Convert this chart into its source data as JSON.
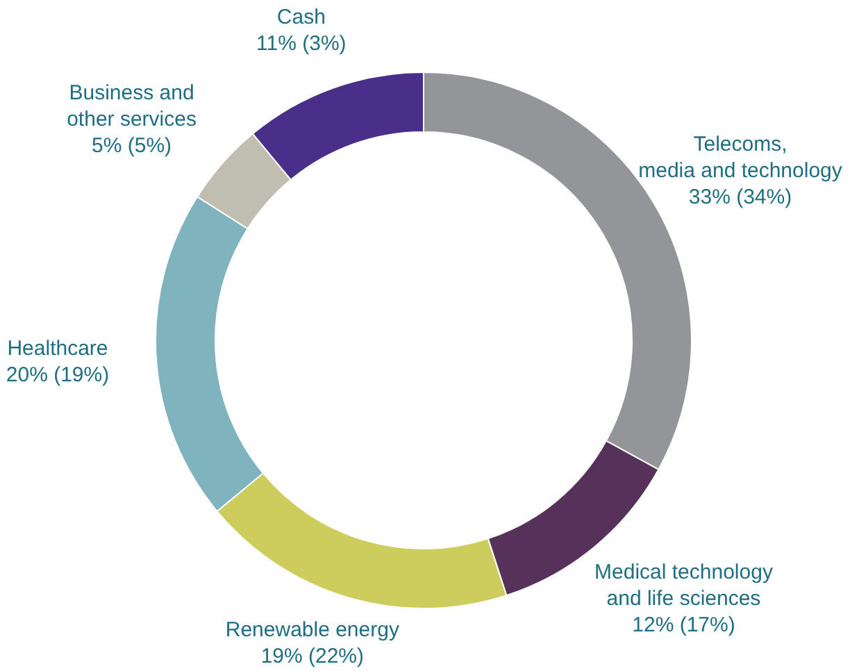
{
  "chart_data": {
    "type": "donut",
    "categories": [
      "Telecoms,\nmedia and technology",
      "Medical technology\nand life sciences",
      "Renewable energy",
      "Healthcare",
      "Business and\nother services",
      "Cash"
    ],
    "values": [
      33,
      12,
      19,
      20,
      5,
      11
    ],
    "value_labels": [
      "33% (34%)",
      "12% (17%)",
      "19% (22%)",
      "20% (19%)",
      "5% (5%)",
      "11% (3%)"
    ],
    "colors": [
      "#939598",
      "#56325a",
      "#cdcd5e",
      "#7fb3bd",
      "#c0bdb1",
      "#4a2f8a"
    ]
  }
}
